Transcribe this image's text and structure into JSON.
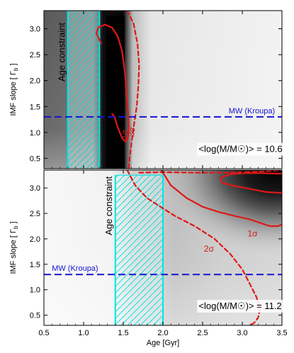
{
  "chart_data": [
    {
      "type": "heatmap",
      "panel": "top",
      "xlabel": "",
      "ylabel": "IMF slope [ Γ_b ]",
      "xlim": [
        0.5,
        3.5
      ],
      "ylim": [
        0.3,
        3.35
      ],
      "x_ticks": [
        0.5,
        1.0,
        1.5,
        2.0,
        2.5,
        3.0,
        3.5
      ],
      "y_ticks": [
        0.5,
        1.0,
        1.5,
        2.0,
        2.5,
        3.0
      ],
      "y_tick_labels": [
        "0.5",
        "1.0",
        "1.5",
        "2.0",
        "2.5",
        "3.0"
      ],
      "mean_mass_label": "<log(M/M☉)> = 10.6",
      "age_constraint": {
        "label": "Age constraint",
        "x_range": [
          0.8,
          1.2
        ],
        "color": "#00e5e5"
      },
      "reference_line": {
        "label": "MW (Kroupa)",
        "y": 1.3,
        "color": "#1414d2"
      },
      "contours": [
        {
          "label": "1σ",
          "style": "solid",
          "color": "#e01818",
          "x": [
            1.22,
            1.16,
            1.19,
            1.27,
            1.36,
            1.43,
            1.48,
            1.51,
            1.53,
            1.54,
            1.56,
            1.57,
            1.56,
            1.53,
            1.49,
            1.45,
            1.42,
            1.39,
            1.36
          ],
          "y": [
            2.72,
            2.92,
            3.03,
            3.08,
            3.02,
            2.85,
            2.6,
            2.3,
            2.0,
            1.7,
            1.4,
            1.1,
            0.9,
            0.82,
            0.88,
            1.02,
            1.15,
            1.3,
            1.36
          ]
        },
        {
          "label": "2σ",
          "style": "dashed",
          "color": "#e01818",
          "x": [
            1.55,
            1.63,
            1.68,
            1.7,
            1.69,
            1.67,
            1.63,
            1.6,
            1.58,
            1.57
          ],
          "y": [
            3.35,
            3.1,
            2.7,
            2.3,
            1.9,
            1.5,
            1.1,
            0.75,
            0.5,
            0.3
          ]
        }
      ]
    },
    {
      "type": "heatmap",
      "panel": "bottom",
      "xlabel": "Age [Gyr]",
      "ylabel": "IMF slope [ Γ_b ]",
      "xlim": [
        0.5,
        3.5
      ],
      "ylim": [
        0.3,
        3.35
      ],
      "x_ticks": [
        0.5,
        1.0,
        1.5,
        2.0,
        2.5,
        3.0,
        3.5
      ],
      "x_tick_labels": [
        "0.5",
        "1.0",
        "1.5",
        "2.0",
        "2.5",
        "3.0",
        "3.5"
      ],
      "y_ticks": [
        0.5,
        1.0,
        1.5,
        2.0,
        2.5,
        3.0
      ],
      "y_tick_labels": [
        "0.5",
        "1.0",
        "1.5",
        "2.0",
        "2.5",
        "3.0"
      ],
      "mean_mass_label": "<log(M/M☉)> = 11.2",
      "age_constraint": {
        "label": "Age constraint",
        "x_range": [
          1.4,
          2.0
        ],
        "color": "#00e5e5"
      },
      "reference_line": {
        "label": "MW (Kroupa)",
        "y": 1.3,
        "color": "#1414d2"
      },
      "contours": [
        {
          "label": "1σ",
          "style": "solid",
          "color": "#e01818",
          "x": [
            1.98,
            2.1,
            2.3,
            2.5,
            2.7,
            2.9,
            3.1,
            3.25,
            3.35,
            3.45,
            3.5
          ],
          "y": [
            3.35,
            3.05,
            2.8,
            2.63,
            2.53,
            2.45,
            2.38,
            2.3,
            2.25,
            2.25,
            2.28
          ]
        },
        {
          "label": "",
          "style": "solid",
          "color": "#e01818",
          "x": [
            3.5,
            3.3,
            3.1,
            2.9,
            2.75,
            2.72,
            2.85,
            3.05,
            3.25,
            3.45,
            3.5
          ],
          "y": [
            2.9,
            2.92,
            2.98,
            3.04,
            3.1,
            3.2,
            3.27,
            3.29,
            3.29,
            3.28,
            3.28
          ]
        },
        {
          "label": "2σ",
          "style": "dashed",
          "color": "#e01818",
          "x": [
            1.55,
            1.65,
            1.8,
            1.95,
            2.15,
            2.4,
            2.65,
            2.85,
            3.0,
            3.1,
            3.18,
            3.22,
            3.2,
            3.15,
            3.1
          ],
          "y": [
            3.35,
            3.05,
            2.8,
            2.65,
            2.45,
            2.25,
            2.0,
            1.7,
            1.4,
            1.1,
            0.85,
            0.6,
            0.45,
            0.35,
            0.3
          ]
        },
        {
          "label": "",
          "style": "dashed",
          "color": "#e01818",
          "x": [
            1.7,
            2.0,
            2.4,
            2.8,
            3.2,
            3.5
          ],
          "y": [
            3.3,
            3.31,
            3.3,
            3.3,
            3.32,
            3.35
          ]
        }
      ]
    }
  ]
}
